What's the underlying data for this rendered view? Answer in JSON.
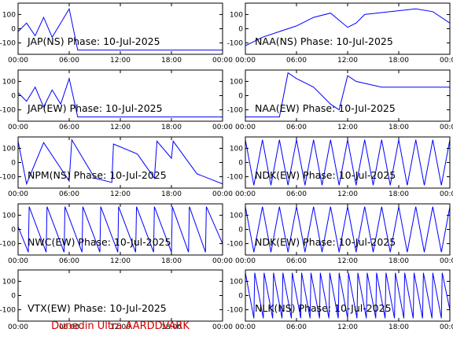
{
  "figure": {
    "footer": "Dunedin Ultra AARDDVARK",
    "footer_color": "#cc0000",
    "trace_color": "#0000ff"
  },
  "chart_data": [
    {
      "type": "line",
      "title": "JAP(NS) Phase: 10-Jul-2025",
      "x_ticks": [
        "00:00",
        "06:00",
        "12:00",
        "18:00",
        "00:00"
      ],
      "y_ticks": [
        "100",
        "0",
        "-100"
      ],
      "xlim": [
        0,
        24
      ],
      "ylim": [
        -180,
        180
      ],
      "series": [
        {
          "values": [
            [
              0,
              -20
            ],
            [
              1,
              40
            ],
            [
              2,
              -50
            ],
            [
              3,
              80
            ],
            [
              4,
              -60
            ],
            [
              5,
              40
            ],
            [
              6,
              140
            ],
            [
              7,
              -150
            ],
            [
              24,
              -150
            ]
          ]
        }
      ]
    },
    {
      "type": "line",
      "title": "NAA(NS) Phase: 10-Jul-2025",
      "x_ticks": [
        "00:00",
        "06:00",
        "12:00",
        "18:00",
        "00:00"
      ],
      "y_ticks": [
        "100",
        "0",
        "-100"
      ],
      "xlim": [
        0,
        24
      ],
      "ylim": [
        -180,
        180
      ],
      "series": [
        {
          "values": [
            [
              0,
              -120
            ],
            [
              2,
              -60
            ],
            [
              4,
              -20
            ],
            [
              6,
              20
            ],
            [
              8,
              80
            ],
            [
              10,
              110
            ],
            [
              11,
              60
            ],
            [
              12,
              10
            ],
            [
              13,
              40
            ],
            [
              14,
              100
            ],
            [
              20,
              140
            ],
            [
              22,
              120
            ],
            [
              24,
              40
            ]
          ]
        }
      ]
    },
    {
      "type": "line",
      "title": "JAP(EW) Phase: 10-Jul-2025",
      "x_ticks": [
        "00:00",
        "06:00",
        "12:00",
        "18:00",
        "00:00"
      ],
      "y_ticks": [
        "100",
        "0",
        "-100"
      ],
      "xlim": [
        0,
        24
      ],
      "ylim": [
        -180,
        180
      ],
      "series": [
        {
          "values": [
            [
              0,
              20
            ],
            [
              1,
              -40
            ],
            [
              2,
              60
            ],
            [
              3,
              -80
            ],
            [
              4,
              40
            ],
            [
              5,
              -60
            ],
            [
              6,
              120
            ],
            [
              7,
              -150
            ],
            [
              24,
              -150
            ]
          ]
        }
      ]
    },
    {
      "type": "line",
      "title": "NAA(EW) Phase: 10-Jul-2025",
      "x_ticks": [
        "00:00",
        "06:00",
        "12:00",
        "18:00",
        "00:00"
      ],
      "y_ticks": [
        "100",
        "0",
        "-100"
      ],
      "xlim": [
        0,
        24
      ],
      "ylim": [
        -180,
        180
      ],
      "series": [
        {
          "values": [
            [
              0,
              -150
            ],
            [
              4,
              -150
            ],
            [
              5,
              160
            ],
            [
              6,
              120
            ],
            [
              8,
              60
            ],
            [
              9,
              0
            ],
            [
              10,
              -60
            ],
            [
              11,
              -100
            ],
            [
              12,
              140
            ],
            [
              13,
              100
            ],
            [
              16,
              60
            ],
            [
              20,
              60
            ],
            [
              24,
              60
            ]
          ]
        }
      ]
    },
    {
      "type": "line",
      "title": "NPM(NS) Phase: 10-Jul-2025",
      "x_ticks": [
        "00:00",
        "06:00",
        "12:00",
        "18:00",
        "00:00"
      ],
      "y_ticks": [
        "100",
        "0",
        "-100"
      ],
      "xlim": [
        0,
        24
      ],
      "ylim": [
        -180,
        180
      ],
      "series": [
        {
          "values": [
            [
              0,
              150
            ],
            [
              1,
              -150
            ],
            [
              3,
              140
            ],
            [
              6,
              -130
            ],
            [
              6.3,
              160
            ],
            [
              9,
              -110
            ],
            [
              11,
              -140
            ],
            [
              11.2,
              130
            ],
            [
              14,
              60
            ],
            [
              16,
              -110
            ],
            [
              16.3,
              150
            ],
            [
              18,
              30
            ],
            [
              18.2,
              150
            ],
            [
              21,
              -80
            ],
            [
              24,
              -150
            ]
          ]
        }
      ]
    },
    {
      "type": "line",
      "title": "NDK(EW) Phase: 10-Jul-2025",
      "x_ticks": [
        "00:00",
        "06:00",
        "12:00",
        "18:00",
        "00:00"
      ],
      "y_ticks": [
        "100",
        "0",
        "-100"
      ],
      "xlim": [
        0,
        24
      ],
      "ylim": [
        -180,
        180
      ],
      "series": [
        {
          "values": [
            [
              0,
              160
            ],
            [
              1,
              -160
            ],
            [
              2,
              160
            ],
            [
              3,
              -160
            ],
            [
              4,
              160
            ],
            [
              5,
              -160
            ],
            [
              6,
              160
            ],
            [
              7,
              -160
            ],
            [
              8,
              160
            ],
            [
              9,
              -160
            ],
            [
              10,
              160
            ],
            [
              11,
              -160
            ],
            [
              12,
              160
            ],
            [
              13,
              -160
            ],
            [
              14,
              160
            ],
            [
              15,
              -160
            ],
            [
              16,
              160
            ],
            [
              17,
              -160
            ],
            [
              18,
              160
            ],
            [
              19,
              -160
            ],
            [
              20,
              160
            ],
            [
              21,
              -160
            ],
            [
              22,
              160
            ],
            [
              23,
              -160
            ],
            [
              24,
              160
            ]
          ]
        }
      ]
    },
    {
      "type": "line",
      "title": "NWC(EW) Phase: 10-Jul-2025",
      "x_ticks": [
        "00:00",
        "06:00",
        "12:00",
        "18:00",
        "00:00"
      ],
      "y_ticks": [
        "100",
        "0",
        "-100"
      ],
      "xlim": [
        0,
        24
      ],
      "ylim": [
        -180,
        180
      ],
      "series": [
        {
          "values": [
            [
              0,
              20
            ],
            [
              1.2,
              -160
            ],
            [
              1.3,
              160
            ],
            [
              3.3,
              -160
            ],
            [
              3.4,
              160
            ],
            [
              5.4,
              -160
            ],
            [
              5.5,
              160
            ],
            [
              7.5,
              -160
            ],
            [
              7.6,
              160
            ],
            [
              9.6,
              -160
            ],
            [
              9.7,
              160
            ],
            [
              11.7,
              -160
            ],
            [
              11.8,
              160
            ],
            [
              13.8,
              -160
            ],
            [
              13.9,
              160
            ],
            [
              15.9,
              -160
            ],
            [
              16,
              160
            ],
            [
              18,
              -160
            ],
            [
              18.1,
              160
            ],
            [
              20,
              -160
            ],
            [
              20.1,
              160
            ],
            [
              22,
              -160
            ],
            [
              22.1,
              160
            ],
            [
              24,
              -100
            ]
          ]
        }
      ]
    },
    {
      "type": "line",
      "title": "NDK(EW) Phase: 10-Jul-2025",
      "x_ticks": [
        "00:00",
        "06:00",
        "12:00",
        "18:00",
        "00:00"
      ],
      "y_ticks": [
        "100",
        "0",
        "-100"
      ],
      "xlim": [
        0,
        24
      ],
      "ylim": [
        -180,
        180
      ],
      "series": [
        {
          "values": [
            [
              0,
              160
            ],
            [
              1,
              -160
            ],
            [
              2,
              160
            ],
            [
              3,
              -160
            ],
            [
              4,
              160
            ],
            [
              5,
              -160
            ],
            [
              6,
              160
            ],
            [
              7,
              -160
            ],
            [
              8,
              160
            ],
            [
              9,
              -160
            ],
            [
              10,
              160
            ],
            [
              11,
              -160
            ],
            [
              12,
              160
            ],
            [
              13,
              -160
            ],
            [
              14,
              160
            ],
            [
              15,
              -160
            ],
            [
              16,
              160
            ],
            [
              17,
              -160
            ],
            [
              18,
              160
            ],
            [
              19,
              -160
            ],
            [
              20,
              160
            ],
            [
              21,
              -160
            ],
            [
              22,
              160
            ],
            [
              23,
              -160
            ],
            [
              24,
              160
            ]
          ]
        }
      ]
    },
    {
      "type": "line",
      "title": "VTX(EW) Phase: 10-Jul-2025",
      "x_ticks": [
        "00:00",
        "06:00",
        "12:00",
        "18:00",
        "00:00"
      ],
      "y_ticks": [
        "100",
        "0",
        "-100"
      ],
      "xlim": [
        0,
        24
      ],
      "ylim": [
        -180,
        180
      ],
      "series": [
        {
          "values": [
            [
              0,
              180
            ],
            [
              0,
              -180
            ],
            [
              24,
              -180
            ],
            [
              24,
              180
            ]
          ]
        }
      ]
    },
    {
      "type": "line",
      "title": "NLK(NS) Phase: 10-Jul-2025",
      "x_ticks": [
        "00:00",
        "06:00",
        "12:00",
        "18:00",
        "00:00"
      ],
      "y_ticks": [
        "100",
        "0",
        "-100"
      ],
      "xlim": [
        0,
        24
      ],
      "ylim": [
        -180,
        180
      ],
      "series": [
        {
          "values": [
            [
              0,
              160
            ],
            [
              1,
              -160
            ],
            [
              1.1,
              160
            ],
            [
              2.1,
              -160
            ],
            [
              2.2,
              160
            ],
            [
              3.2,
              -160
            ],
            [
              3.3,
              160
            ],
            [
              4.3,
              -160
            ],
            [
              4.4,
              160
            ],
            [
              5.4,
              -160
            ],
            [
              5.5,
              160
            ],
            [
              6.5,
              -160
            ],
            [
              6.6,
              160
            ],
            [
              7.6,
              -160
            ],
            [
              7.7,
              160
            ],
            [
              8.7,
              -160
            ],
            [
              8.8,
              160
            ],
            [
              9.8,
              -160
            ],
            [
              9.9,
              160
            ],
            [
              10.9,
              -160
            ],
            [
              11,
              160
            ],
            [
              12,
              -160
            ],
            [
              12.1,
              160
            ],
            [
              13.1,
              -160
            ],
            [
              13.2,
              160
            ],
            [
              14.2,
              -160
            ],
            [
              14.3,
              160
            ],
            [
              15.3,
              -160
            ],
            [
              15.4,
              160
            ],
            [
              16.4,
              -160
            ],
            [
              16.5,
              160
            ],
            [
              17.5,
              -160
            ],
            [
              17.6,
              160
            ],
            [
              18.6,
              -160
            ],
            [
              18.7,
              160
            ],
            [
              19.7,
              -160
            ],
            [
              19.8,
              160
            ],
            [
              20.8,
              -160
            ],
            [
              20.9,
              160
            ],
            [
              21.9,
              -160
            ],
            [
              22,
              160
            ],
            [
              23,
              -160
            ],
            [
              23.1,
              160
            ],
            [
              24,
              -100
            ]
          ]
        }
      ]
    }
  ]
}
